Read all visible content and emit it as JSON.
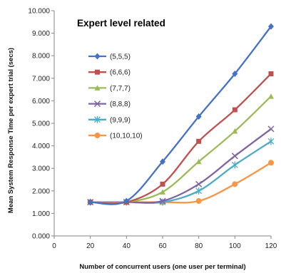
{
  "chart_data": {
    "type": "line",
    "title": "Expert level related",
    "xlabel": "Number of concurrent users (one user per terminal)",
    "ylabel": "Mean System Response Time per expert trial (secs)",
    "xlim": [
      0,
      120
    ],
    "ylim": [
      0,
      10
    ],
    "x_ticks": [
      0,
      20,
      40,
      60,
      80,
      100,
      120
    ],
    "y_ticks": [
      "0.000",
      "1.000",
      "2.000",
      "3.000",
      "4.000",
      "5.000",
      "6.000",
      "7.000",
      "8.000",
      "9.000",
      "10.000"
    ],
    "grid": false,
    "legend_position": "left-middle",
    "x": [
      20,
      40,
      60,
      80,
      100,
      120
    ],
    "series": [
      {
        "name": "(5,5,5)",
        "color": "#4472C4",
        "marker": "diamond",
        "values": [
          1.5,
          1.55,
          3.3,
          5.3,
          7.2,
          9.3
        ]
      },
      {
        "name": "(6,6,6)",
        "color": "#C0504D",
        "marker": "square",
        "values": [
          1.5,
          1.5,
          2.3,
          4.2,
          5.6,
          7.2
        ]
      },
      {
        "name": "(7,7,7)",
        "color": "#9BBB59",
        "marker": "triangle",
        "values": [
          1.5,
          1.5,
          1.95,
          3.3,
          4.65,
          6.2
        ]
      },
      {
        "name": "(8,8,8)",
        "color": "#8064A2",
        "marker": "x",
        "values": [
          1.5,
          1.5,
          1.55,
          2.3,
          3.55,
          4.75
        ]
      },
      {
        "name": "(9,9,9)",
        "color": "#4BACC6",
        "marker": "star",
        "values": [
          1.5,
          1.5,
          1.5,
          2.0,
          3.15,
          4.2
        ]
      },
      {
        "name": "(10,10,10)",
        "color": "#F79646",
        "marker": "circle",
        "values": [
          1.5,
          1.5,
          1.5,
          1.55,
          2.3,
          3.25
        ]
      }
    ]
  }
}
